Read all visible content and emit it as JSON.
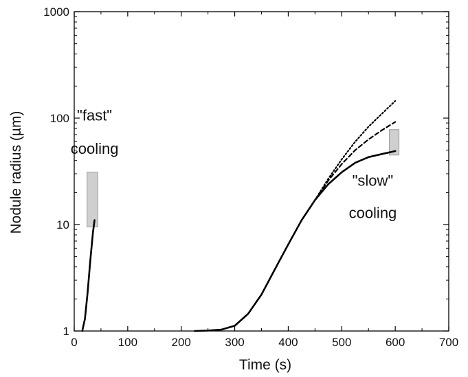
{
  "chart_data": {
    "type": "line",
    "title": "",
    "xlabel": "Time (s)",
    "ylabel": "Nodule radius (µm)",
    "xlim": [
      0,
      700
    ],
    "ylim": [
      1,
      1000
    ],
    "yscale": "log",
    "grid": false,
    "x_ticks": [
      "0",
      "100",
      "200",
      "300",
      "400",
      "500",
      "600",
      "700"
    ],
    "y_ticks": [
      "1",
      "10",
      "100",
      "1000"
    ],
    "x_tick_values": [
      0,
      100,
      200,
      300,
      400,
      500,
      600,
      700
    ],
    "y_tick_values": [
      1,
      10,
      100,
      1000
    ],
    "series": [
      {
        "style": "solid",
        "x": [
          15,
          20,
          25,
          30,
          35,
          38
        ],
        "y": [
          1.0,
          1.3,
          2.3,
          4.6,
          8.5,
          11
        ]
      },
      {
        "style": "solid",
        "x": [
          225,
          250,
          275,
          300,
          325,
          350,
          375,
          400,
          425,
          450,
          475,
          500,
          525,
          550,
          575,
          600
        ],
        "y": [
          1.0,
          1.01,
          1.03,
          1.12,
          1.45,
          2.2,
          3.8,
          6.5,
          11,
          17,
          24,
          31,
          38,
          43,
          46,
          49
        ]
      },
      {
        "style": "dashed",
        "x": [
          450,
          475,
          500,
          525,
          550,
          575,
          600
        ],
        "y": [
          17,
          26,
          37,
          50,
          63,
          77,
          92
        ]
      },
      {
        "style": "dotted",
        "x": [
          450,
          475,
          500,
          525,
          550,
          575,
          600
        ],
        "y": [
          17,
          27,
          41,
          60,
          83,
          110,
          145
        ]
      }
    ],
    "highlight_boxes": [
      {
        "x": [
          24,
          44
        ],
        "y": [
          9.5,
          31
        ]
      },
      {
        "x": [
          589,
          607
        ],
        "y": [
          45,
          78
        ]
      }
    ],
    "annotations": [
      {
        "lines": [
          "\"fast\"",
          "cooling"
        ],
        "x": 38,
        "y": [
          107,
          52
        ]
      },
      {
        "lines": [
          "\"slow\"",
          "cooling"
        ],
        "x": 558,
        "y": [
          26,
          13
        ]
      }
    ],
    "colors": {
      "line": "#000000",
      "box_fill": "#cfcfcf",
      "box_stroke": "#9a9a9a"
    }
  }
}
